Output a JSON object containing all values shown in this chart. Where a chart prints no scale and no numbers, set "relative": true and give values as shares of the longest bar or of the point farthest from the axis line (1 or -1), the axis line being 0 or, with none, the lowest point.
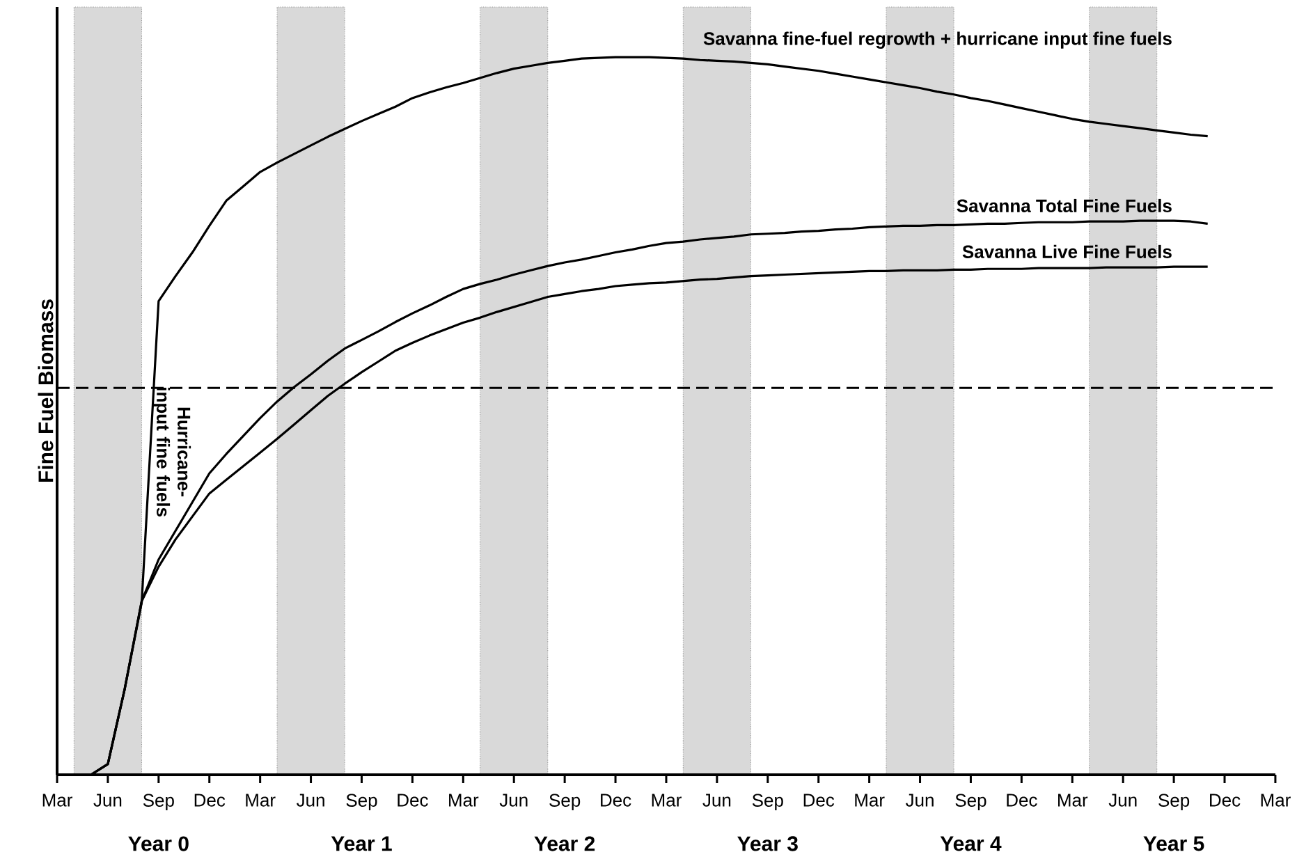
{
  "chart_data": {
    "type": "line",
    "relative": true,
    "ylabel": "Fine Fuel Biomass",
    "categories": [
      "Mar",
      null,
      null,
      "Jun",
      null,
      null,
      "Sep",
      null,
      null,
      "Dec",
      null,
      null,
      "Mar",
      null,
      null,
      "Jun",
      null,
      null,
      "Sep",
      null,
      null,
      "Dec",
      null,
      null,
      "Mar",
      null,
      null,
      "Jun",
      null,
      null,
      "Sep",
      null,
      null,
      "Dec",
      null,
      null,
      "Mar",
      null,
      null,
      "Jun",
      null,
      null,
      "Sep",
      null,
      null,
      "Dec",
      null,
      null,
      "Mar",
      null,
      null,
      "Jun",
      null,
      null,
      "Sep",
      null,
      null,
      "Dec",
      null,
      null,
      "Mar",
      null,
      null,
      "Jun",
      null,
      null,
      "Sep",
      null,
      null,
      "Dec",
      null,
      null,
      "Mar"
    ],
    "series": [
      {
        "name": "Savanna fine-fuel regrowth + hurricane input fine fuels",
        "color": "#000000",
        "values": [
          null,
          null,
          0,
          0.015,
          0.12,
          0.24,
          0.66,
          0.695,
          0.728,
          0.765,
          0.8,
          0.82,
          0.84,
          0.853,
          0.865,
          0.877,
          0.889,
          0.9,
          0.911,
          0.921,
          0.931,
          0.943,
          0.951,
          0.958,
          0.964,
          0.971,
          0.978,
          0.984,
          0.988,
          0.992,
          0.995,
          0.998,
          0.999,
          1.0,
          1.0,
          1.0,
          0.999,
          0.998,
          0.996,
          0.995,
          0.994,
          0.992,
          0.99,
          0.987,
          0.984,
          0.981,
          0.977,
          0.973,
          0.969,
          0.965,
          0.961,
          0.957,
          0.952,
          0.948,
          0.943,
          0.939,
          0.934,
          0.929,
          0.924,
          0.919,
          0.914,
          0.91,
          0.907,
          0.904,
          0.901,
          0.898,
          0.895,
          0.892,
          0.89,
          null,
          null,
          null,
          null
        ]
      },
      {
        "name": "Savanna Total Fine Fuels",
        "color": "#000000",
        "values": [
          null,
          null,
          0,
          0.015,
          0.12,
          0.242,
          0.3,
          0.34,
          0.38,
          0.42,
          0.447,
          0.472,
          0.497,
          0.52,
          0.54,
          0.558,
          0.577,
          0.594,
          0.606,
          0.618,
          0.631,
          0.643,
          0.654,
          0.666,
          0.677,
          0.684,
          0.69,
          0.697,
          0.703,
          0.709,
          0.714,
          0.718,
          0.723,
          0.728,
          0.732,
          0.737,
          0.741,
          0.743,
          0.746,
          0.748,
          0.75,
          0.753,
          0.754,
          0.755,
          0.757,
          0.758,
          0.76,
          0.761,
          0.763,
          0.764,
          0.765,
          0.765,
          0.766,
          0.766,
          0.767,
          0.768,
          0.768,
          0.769,
          0.77,
          0.77,
          0.77,
          0.771,
          0.771,
          0.771,
          0.772,
          0.772,
          0.772,
          0.771,
          0.768,
          null,
          null,
          null,
          null
        ]
      },
      {
        "name": "Savanna Live Fine Fuels",
        "color": "#000000",
        "values": [
          null,
          null,
          0,
          0.015,
          0.12,
          0.242,
          0.29,
          0.328,
          0.36,
          0.392,
          0.411,
          0.43,
          0.449,
          0.468,
          0.488,
          0.508,
          0.528,
          0.545,
          0.561,
          0.576,
          0.591,
          0.602,
          0.612,
          0.621,
          0.63,
          0.637,
          0.645,
          0.652,
          0.659,
          0.666,
          0.67,
          0.674,
          0.677,
          0.681,
          0.683,
          0.685,
          0.686,
          0.688,
          0.69,
          0.691,
          0.693,
          0.695,
          0.696,
          0.697,
          0.698,
          0.699,
          0.7,
          0.701,
          0.702,
          0.702,
          0.703,
          0.703,
          0.703,
          0.704,
          0.704,
          0.705,
          0.705,
          0.705,
          0.706,
          0.706,
          0.706,
          0.706,
          0.707,
          0.707,
          0.707,
          0.707,
          0.708,
          0.708,
          0.708,
          null,
          null,
          null,
          null
        ]
      }
    ],
    "ref_lines": [
      {
        "axis": "y",
        "value": 0.539,
        "color": "#000000",
        "line_style": "dashed"
      }
    ],
    "annotations": [
      "Hurricane-input fine fuels",
      "Year 0",
      "Year 1",
      "Year 2",
      "Year 3",
      "Year 4",
      "Year 5"
    ]
  }
}
